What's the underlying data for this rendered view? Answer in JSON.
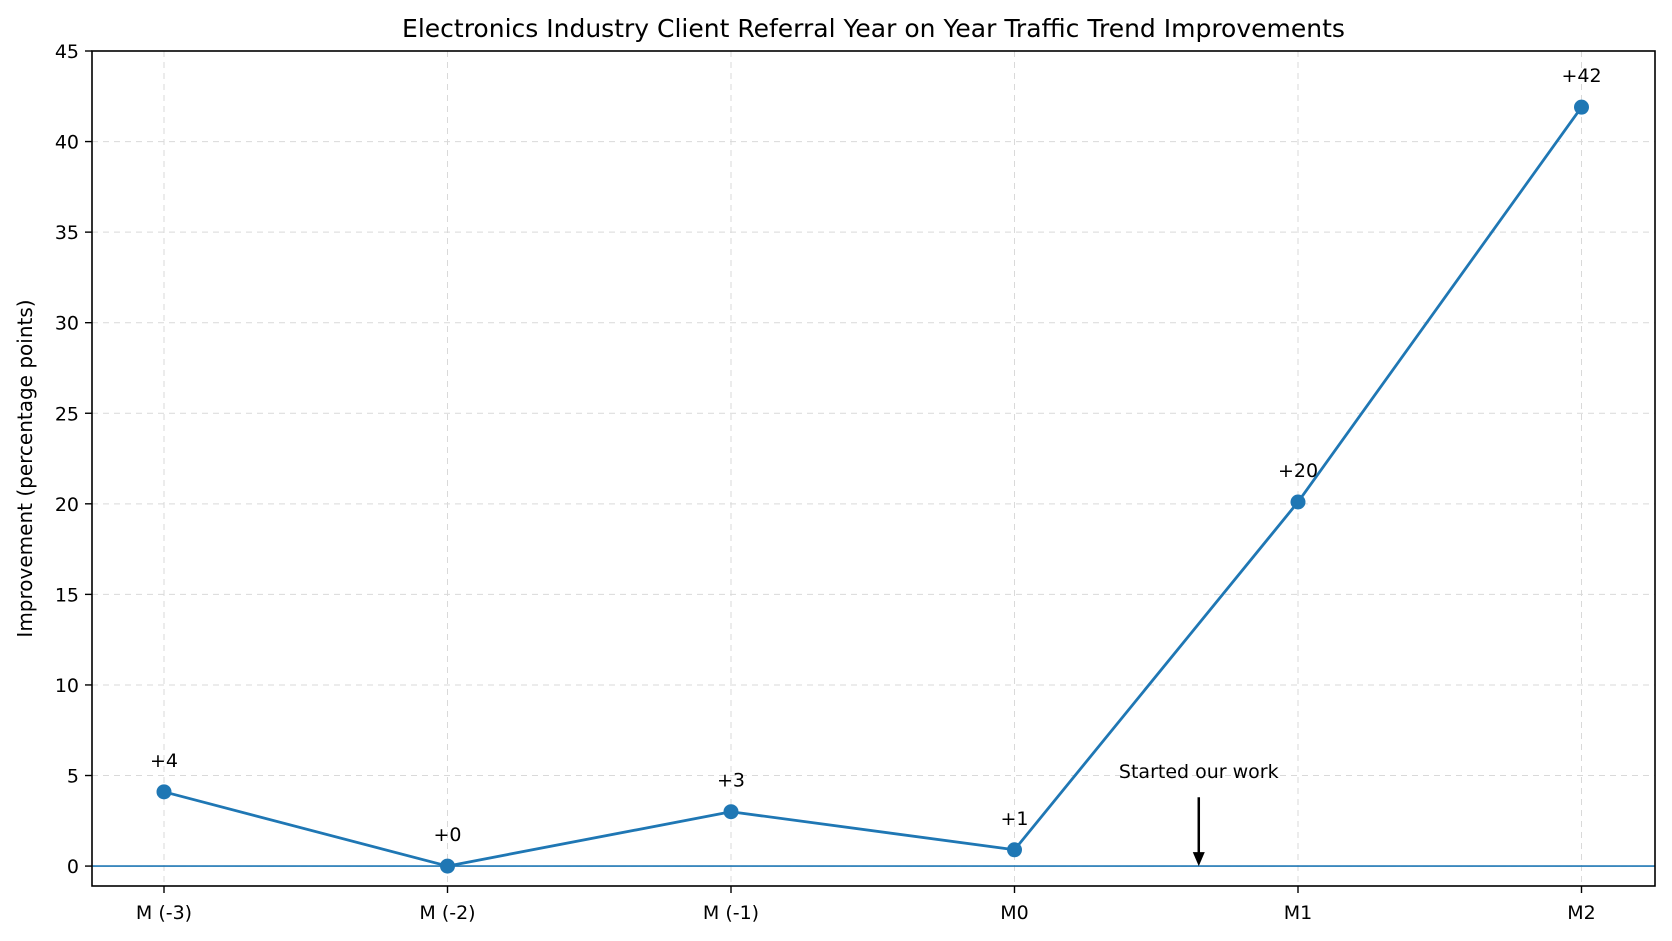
{
  "chart_data": {
    "type": "line",
    "title": "Electronics Industry Client Referral Year on Year Traffic Trend Improvements",
    "xlabel": "",
    "ylabel": "Improvement (percentage points)",
    "categories": [
      "M (-3)",
      "M (-2)",
      "M (-1)",
      "M0",
      "M1",
      "M2"
    ],
    "series": [
      {
        "values": [
          4.1,
          0,
          3,
          0.9,
          20.1,
          41.9
        ],
        "labels": [
          "+4",
          "+0",
          "+3",
          "+1",
          "+20",
          "+42"
        ]
      }
    ],
    "ylim": [
      -1.1,
      45
    ],
    "yticks": [
      0,
      5,
      10,
      15,
      20,
      25,
      30,
      35,
      40,
      45
    ],
    "grid": true,
    "legend": "none",
    "baseline": 0,
    "annotation": {
      "text": "Started our work",
      "x": 3.65,
      "arrow_from_y": 3.8,
      "arrow_to_y": 0
    },
    "colors": {
      "line": "#1f77b4",
      "baseline": "#1f77b4",
      "grid": "#d9d9d9",
      "arrow": "#000000"
    }
  }
}
